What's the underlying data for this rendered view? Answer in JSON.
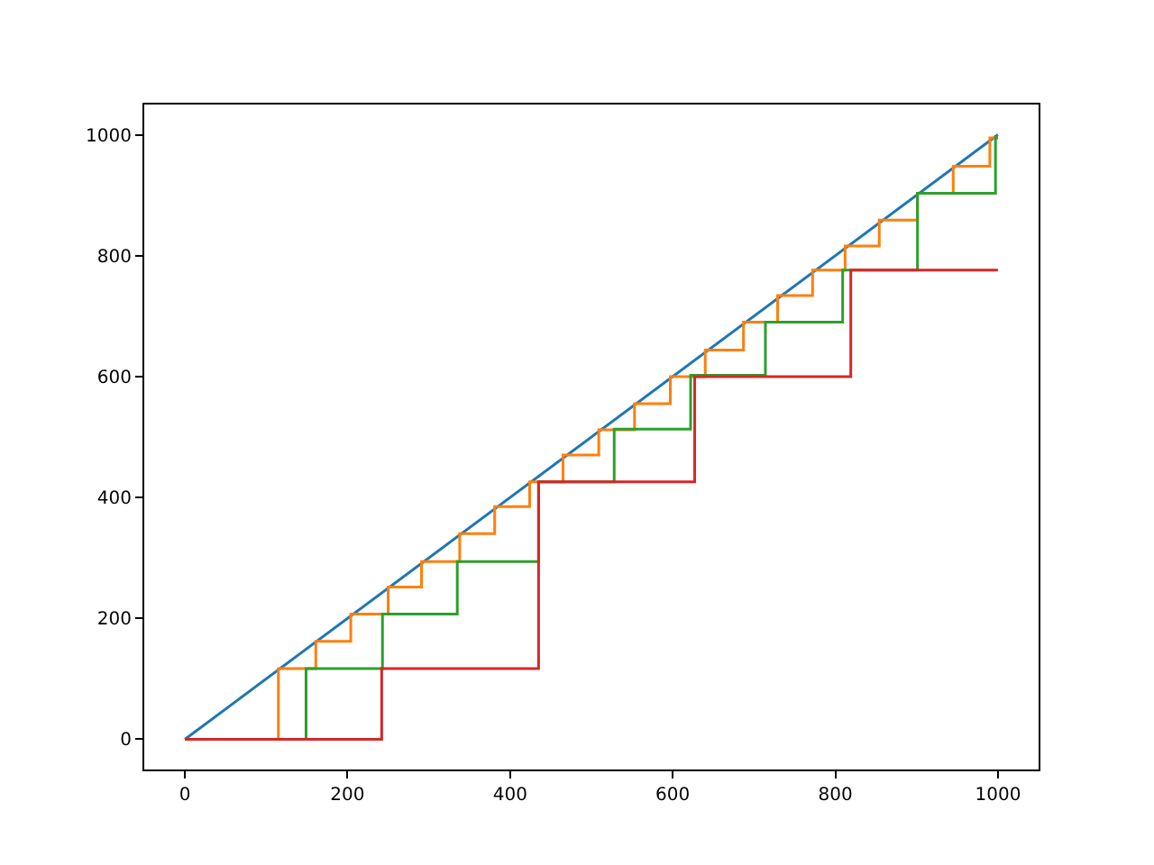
{
  "chart_data": {
    "type": "line",
    "xlim": [
      -50,
      1050
    ],
    "ylim": [
      -50,
      1050
    ],
    "xticks": [
      0,
      200,
      400,
      600,
      800,
      1000
    ],
    "yticks": [
      0,
      200,
      400,
      600,
      800,
      1000
    ],
    "grid": false,
    "series": [
      {
        "color": "#1f77b4",
        "x": [
          0,
          1000
        ],
        "values": [
          0,
          1000
        ]
      },
      {
        "type": "step",
        "color": "#ff7f0e",
        "x": [
          0,
          115,
          161,
          204,
          250,
          291,
          338,
          381,
          424,
          465,
          509,
          553,
          597,
          640,
          687,
          729,
          772,
          812,
          854,
          901,
          945,
          990,
          1000
        ],
        "values": [
          0,
          117,
          162,
          207,
          252,
          294,
          340,
          385,
          426,
          470,
          512,
          555,
          600,
          644,
          690,
          734,
          776,
          816,
          859,
          903,
          948,
          995,
          995
        ]
      },
      {
        "type": "step",
        "color": "#2ca02c",
        "x": [
          0,
          149,
          243,
          335,
          435,
          528,
          622,
          714,
          809,
          901,
          997,
          1000
        ],
        "values": [
          0,
          117,
          207,
          294,
          426,
          513,
          602,
          690,
          776,
          903,
          995,
          995
        ]
      },
      {
        "type": "step",
        "color": "#d62728",
        "x": [
          0,
          242,
          435,
          627,
          819,
          1000
        ],
        "values": [
          0,
          117,
          426,
          600,
          776,
          776
        ]
      }
    ]
  }
}
